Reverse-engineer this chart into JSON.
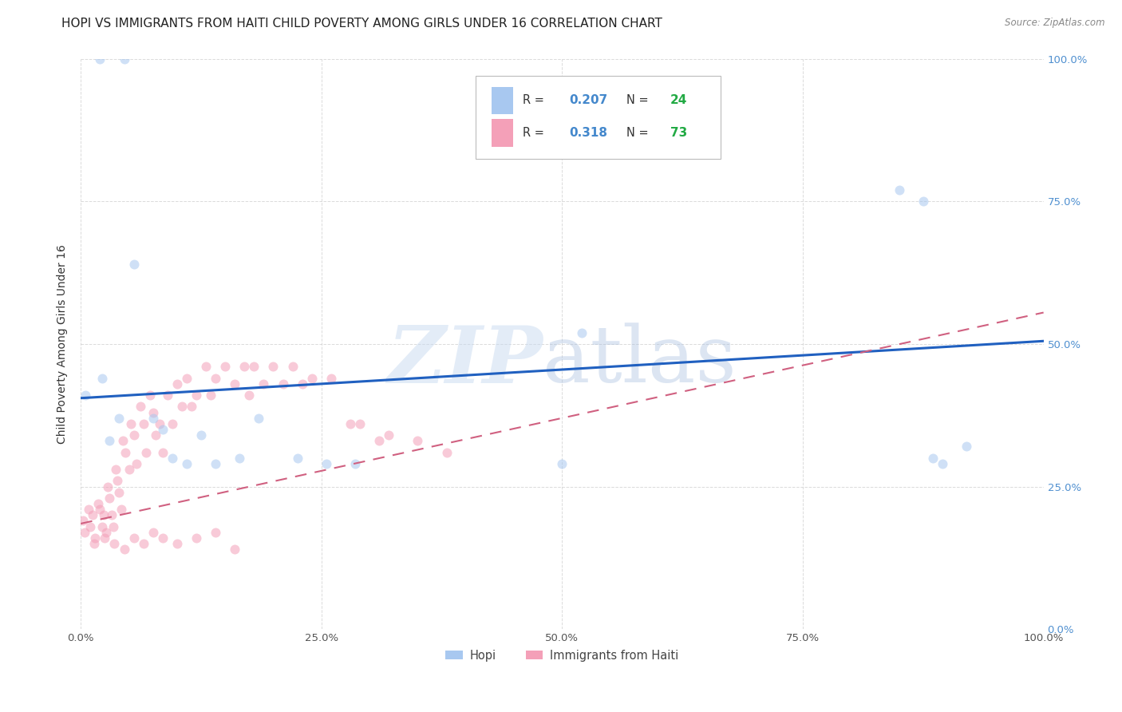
{
  "title": "HOPI VS IMMIGRANTS FROM HAITI CHILD POVERTY AMONG GIRLS UNDER 16 CORRELATION CHART",
  "source": "Source: ZipAtlas.com",
  "ylabel": "Child Poverty Among Girls Under 16",
  "xlim": [
    0,
    1.0
  ],
  "ylim": [
    0,
    1.0
  ],
  "xticks": [
    0.0,
    0.25,
    0.5,
    0.75,
    1.0
  ],
  "yticks": [
    0.0,
    0.25,
    0.5,
    0.75,
    1.0
  ],
  "xticklabels": [
    "0.0%",
    "25.0%",
    "50.0%",
    "75.0%",
    "100.0%"
  ],
  "yticklabels": [
    "0.0%",
    "25.0%",
    "50.0%",
    "75.0%",
    "100.0%"
  ],
  "hopi_color": "#a8c8f0",
  "haiti_color": "#f4a0b8",
  "hopi_line_color": "#2060c0",
  "haiti_line_color": "#d06080",
  "background_color": "#ffffff",
  "grid_color": "#cccccc",
  "right_tick_color": "#5090d0",
  "title_fontsize": 11,
  "label_fontsize": 10,
  "tick_fontsize": 9.5,
  "marker_size": 75,
  "marker_alpha": 0.55,
  "hopi_line_x": [
    0.0,
    1.0
  ],
  "hopi_line_y": [
    0.405,
    0.505
  ],
  "haiti_line_x": [
    0.0,
    1.0
  ],
  "haiti_line_y": [
    0.185,
    0.555
  ],
  "hopi_x": [
    0.02,
    0.045,
    0.005,
    0.022,
    0.03,
    0.04,
    0.055,
    0.075,
    0.085,
    0.095,
    0.11,
    0.125,
    0.14,
    0.165,
    0.185,
    0.225,
    0.255,
    0.285,
    0.85,
    0.875,
    0.885,
    0.895,
    0.92,
    0.5,
    0.52
  ],
  "hopi_y": [
    1.0,
    1.0,
    0.41,
    0.44,
    0.33,
    0.37,
    0.64,
    0.37,
    0.35,
    0.3,
    0.29,
    0.34,
    0.29,
    0.3,
    0.37,
    0.3,
    0.29,
    0.29,
    0.77,
    0.75,
    0.3,
    0.29,
    0.32,
    0.29,
    0.52
  ],
  "haiti_x": [
    0.002,
    0.004,
    0.008,
    0.01,
    0.012,
    0.014,
    0.018,
    0.02,
    0.022,
    0.024,
    0.026,
    0.028,
    0.03,
    0.032,
    0.034,
    0.036,
    0.038,
    0.04,
    0.042,
    0.044,
    0.046,
    0.05,
    0.052,
    0.055,
    0.058,
    0.062,
    0.065,
    0.068,
    0.072,
    0.075,
    0.078,
    0.082,
    0.085,
    0.09,
    0.095,
    0.1,
    0.105,
    0.11,
    0.115,
    0.12,
    0.13,
    0.135,
    0.14,
    0.15,
    0.16,
    0.17,
    0.175,
    0.18,
    0.19,
    0.2,
    0.21,
    0.22,
    0.23,
    0.24,
    0.26,
    0.28,
    0.29,
    0.31,
    0.32,
    0.35,
    0.38,
    0.015,
    0.025,
    0.035,
    0.045,
    0.055,
    0.065,
    0.075,
    0.085,
    0.1,
    0.12,
    0.14,
    0.16
  ],
  "haiti_y": [
    0.19,
    0.17,
    0.21,
    0.18,
    0.2,
    0.15,
    0.22,
    0.21,
    0.18,
    0.2,
    0.17,
    0.25,
    0.23,
    0.2,
    0.18,
    0.28,
    0.26,
    0.24,
    0.21,
    0.33,
    0.31,
    0.28,
    0.36,
    0.34,
    0.29,
    0.39,
    0.36,
    0.31,
    0.41,
    0.38,
    0.34,
    0.36,
    0.31,
    0.41,
    0.36,
    0.43,
    0.39,
    0.44,
    0.39,
    0.41,
    0.46,
    0.41,
    0.44,
    0.46,
    0.43,
    0.46,
    0.41,
    0.46,
    0.43,
    0.46,
    0.43,
    0.46,
    0.43,
    0.44,
    0.44,
    0.36,
    0.36,
    0.33,
    0.34,
    0.33,
    0.31,
    0.16,
    0.16,
    0.15,
    0.14,
    0.16,
    0.15,
    0.17,
    0.16,
    0.15,
    0.16,
    0.17,
    0.14
  ]
}
